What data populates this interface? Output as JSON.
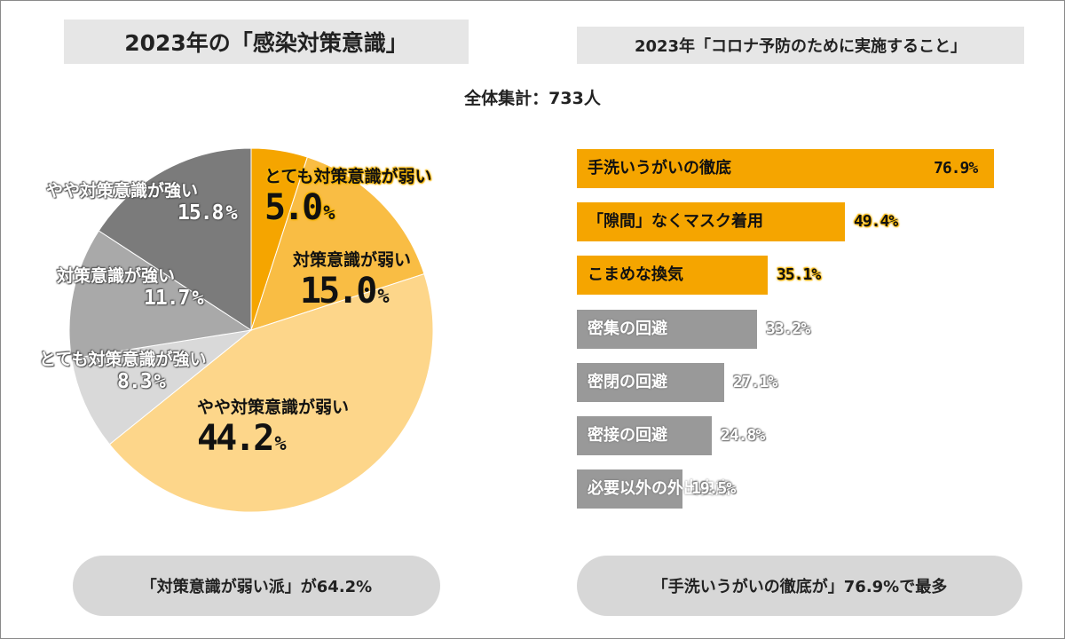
{
  "left_title": "2023年の「感染対策意識」",
  "right_title": "2023年「コロナ予防のために実施すること」",
  "total_label": "全体集計：733人",
  "chart_data": [
    {
      "type": "pie",
      "title": "2023年の「感染対策意識」",
      "slices": [
        {
          "label": "とても対策意識が弱い",
          "value": 5.0,
          "display": "5.0",
          "color": "#f5a500"
        },
        {
          "label": "対策意識が弱い",
          "value": 15.0,
          "display": "15.0",
          "color": "#f9bd44"
        },
        {
          "label": "やや対策意識が弱い",
          "value": 44.2,
          "display": "44.2",
          "color": "#fdd68a"
        },
        {
          "label": "とても対策意識が強い",
          "value": 8.3,
          "display": "8.3",
          "color": "#d9d9d9"
        },
        {
          "label": "対策意識が強い",
          "value": 11.7,
          "display": "11.7",
          "color": "#a9a9a9"
        },
        {
          "label": "やや対策意識が強い",
          "value": 15.8,
          "display": "15.8",
          "color": "#7b7b7b"
        }
      ],
      "unit": "%"
    },
    {
      "type": "bar",
      "orientation": "horizontal",
      "title": "2023年「コロナ予防のために実施すること」",
      "categories": [
        "手洗いうがいの徹底",
        "「隙間」なくマスク着用",
        "こまめな換気",
        "密集の回避",
        "密閉の回避",
        "密接の回避",
        "必要以外の外出自粛"
      ],
      "values": [
        76.9,
        49.4,
        35.1,
        33.2,
        27.1,
        24.8,
        19.5
      ],
      "labels": [
        "76.9%",
        "49.4%",
        "35.1%",
        "33.2%",
        "27.1%",
        "24.8%",
        "19.5%"
      ],
      "highlight_count": 3,
      "highlight_color": "#f5a500",
      "base_color": "#999999"
    }
  ],
  "summary_left": "「対策意識が弱い派」が64.2%",
  "summary_right": "「手洗いうがいの徹底が」76.9%で最多"
}
